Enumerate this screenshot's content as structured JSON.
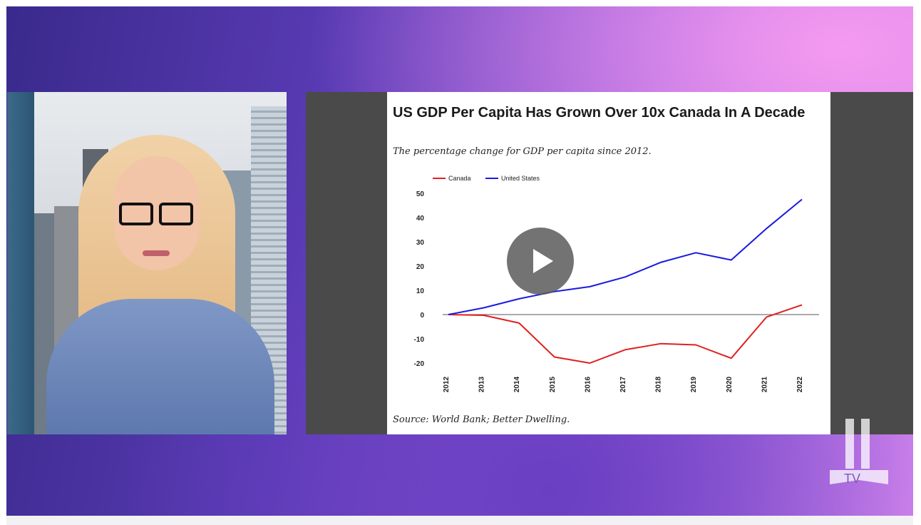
{
  "chart": {
    "title": "US GDP Per Capita Has Grown Over 10x Canada In A Decade",
    "subtitle": "The percentage change for GDP per capita since 2012.",
    "source": "Source: World Bank; Better Dwelling."
  },
  "logo": {
    "text": "TV"
  },
  "chart_data": {
    "type": "line",
    "title": "US GDP Per Capita Has Grown Over 10x Canada In A Decade",
    "subtitle": "The percentage change for GDP per capita since 2012.",
    "xlabel": "",
    "ylabel": "",
    "x": [
      "2012",
      "2013",
      "2014",
      "2015",
      "2016",
      "2017",
      "2018",
      "2019",
      "2020",
      "2021",
      "2022"
    ],
    "ylim": [
      -20,
      50
    ],
    "yticks": [
      50,
      40,
      30,
      20,
      10,
      0,
      -10,
      -20
    ],
    "legend_position": "top-left",
    "grid": false,
    "series": [
      {
        "name": "Canada",
        "color": "#e02020",
        "values": [
          0,
          -0.3,
          -3.5,
          -17.5,
          -20,
          -14.5,
          -12,
          -12.5,
          -18,
          -1,
          4
        ]
      },
      {
        "name": "United States",
        "color": "#1a1ae0",
        "values": [
          0,
          2.8,
          6.5,
          9.5,
          11.5,
          15.5,
          21.5,
          25.5,
          22.5,
          35.5,
          47.5
        ]
      }
    ]
  }
}
